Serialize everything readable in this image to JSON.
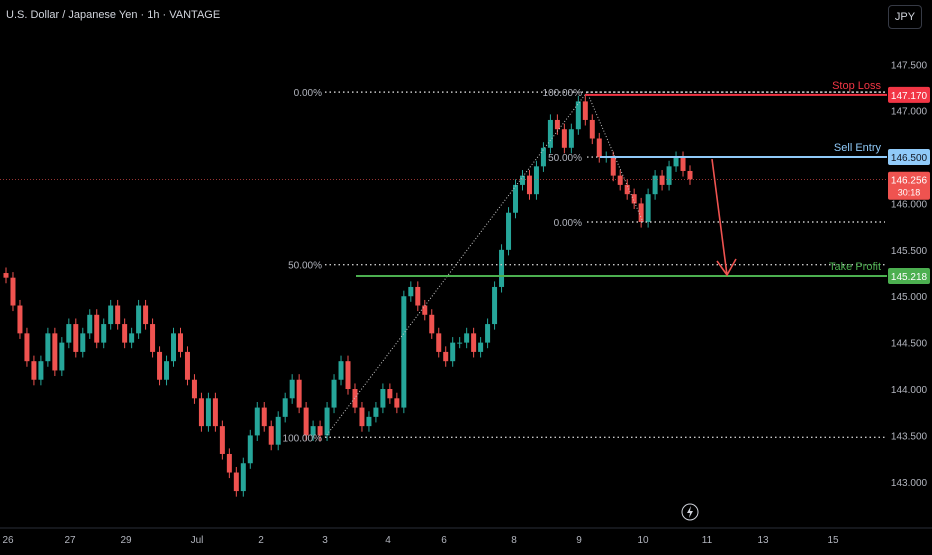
{
  "header": {
    "symbol_title": "U.S. Dollar / Japanese Yen · 1h · VANTAGE",
    "currency_button": "JPY"
  },
  "colors": {
    "up": "#26a69a",
    "down": "#ef5350",
    "stop": "#f23645",
    "take_profit": "#4caf50",
    "entry": "#90caf9",
    "grid_text": "#b2b5be",
    "dotted": "#c8c8c8"
  },
  "chart_data": {
    "type": "candlestick",
    "instrument": "USD/JPY",
    "timeframe": "1h",
    "ylim": [
      142.75,
      147.6
    ],
    "y_ticks": [
      {
        "value": 147.5,
        "label": "147.500"
      },
      {
        "value": 147.0,
        "label": "147.000"
      },
      {
        "value": 146.0,
        "label": "146.000"
      },
      {
        "value": 145.5,
        "label": "145.500"
      },
      {
        "value": 145.0,
        "label": "145.000"
      },
      {
        "value": 144.5,
        "label": "144.500"
      },
      {
        "value": 144.0,
        "label": "144.000"
      },
      {
        "value": 143.5,
        "label": "143.500"
      },
      {
        "value": 143.0,
        "label": "143.000"
      }
    ],
    "x_ticks": [
      "26",
      "27",
      "29",
      "Jul",
      "2",
      "3",
      "4",
      "6",
      "8",
      "9",
      "10",
      "11",
      "13",
      "15"
    ],
    "levels": [
      {
        "id": "stop",
        "name": "Stop Loss",
        "value": 147.17,
        "label": "147.170",
        "color": "#f23645"
      },
      {
        "id": "entry",
        "name": "Sell Entry",
        "value": 146.5,
        "label": "146.500",
        "color": "#90caf9"
      },
      {
        "id": "tp",
        "name": "Take Profit",
        "value": 145.218,
        "label": "145.218",
        "color": "#4caf50"
      }
    ],
    "current_price": {
      "value": 146.256,
      "label": "146.256",
      "countdown": "30:18"
    },
    "fib_big": {
      "high": 147.2,
      "low": 143.48,
      "labels": [
        "0.00%",
        "50.00%",
        "100.00%"
      ]
    },
    "fib_small": {
      "high": 147.2,
      "low": 145.8,
      "labels": [
        "100.00%",
        "50.00%",
        "0.00%"
      ]
    },
    "closes": [
      145.2,
      144.9,
      144.6,
      144.3,
      144.1,
      144.3,
      144.6,
      144.2,
      144.5,
      144.7,
      144.4,
      144.6,
      144.8,
      144.5,
      144.7,
      144.9,
      144.7,
      144.5,
      144.6,
      144.9,
      144.7,
      144.4,
      144.1,
      144.3,
      144.6,
      144.4,
      144.1,
      143.9,
      143.6,
      143.9,
      143.6,
      143.3,
      143.1,
      142.9,
      143.2,
      143.5,
      143.8,
      143.6,
      143.4,
      143.7,
      143.9,
      144.1,
      143.8,
      143.5,
      143.6,
      143.5,
      143.8,
      144.1,
      144.3,
      144.0,
      143.8,
      143.6,
      143.7,
      143.8,
      144.0,
      143.9,
      143.8,
      145.0,
      145.1,
      144.9,
      144.8,
      144.6,
      144.4,
      144.3,
      144.5,
      144.5,
      144.6,
      144.4,
      144.5,
      144.7,
      145.1,
      145.5,
      145.9,
      146.2,
      146.3,
      146.1,
      146.4,
      146.6,
      146.9,
      146.8,
      146.6,
      146.8,
      147.1,
      146.9,
      146.7,
      146.5,
      146.5,
      146.3,
      146.2,
      146.1,
      146.0,
      145.8,
      146.1,
      146.3,
      146.2,
      146.4,
      146.5,
      146.35,
      146.26
    ]
  }
}
